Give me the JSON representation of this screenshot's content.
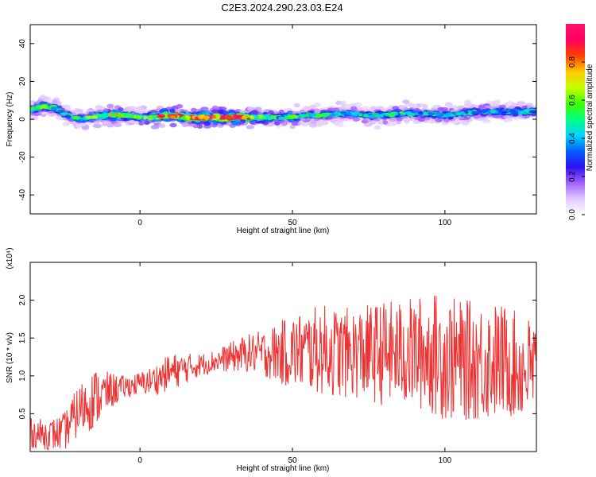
{
  "title": "C2E3.2024.290.23.03.E24",
  "chart_data": [
    {
      "type": "heatmap",
      "xlabel": "Height of straight line (km)",
      "ylabel": "Frequency (Hz)",
      "xlim": [
        -36,
        130
      ],
      "ylim": [
        -50,
        50
      ],
      "xticks": [
        0,
        50,
        100
      ],
      "yticks": [
        -40,
        -20,
        0,
        20,
        40
      ],
      "grid": false,
      "ridge": {
        "description_units": "x in km, y in Hz",
        "x": [
          -36,
          -32,
          -28,
          -24,
          -20,
          -16,
          -12,
          -8,
          -4,
          0,
          5,
          10,
          15,
          20,
          25,
          30,
          35,
          40,
          45,
          50,
          55,
          60,
          65,
          70,
          75,
          80,
          85,
          90,
          95,
          100,
          105,
          110,
          115,
          120,
          125,
          130
        ],
        "y": [
          5,
          7,
          6,
          2,
          0,
          1,
          2,
          2,
          2,
          1,
          1,
          2,
          1,
          1,
          1,
          1,
          1,
          1,
          1,
          1,
          2,
          2,
          3,
          3,
          2,
          2,
          3,
          3,
          3,
          2,
          3,
          4,
          4,
          4,
          4,
          4
        ],
        "amplitude": [
          0.5,
          0.55,
          0.5,
          0.45,
          0.5,
          0.55,
          0.65,
          0.8,
          0.6,
          0.55,
          0.7,
          0.9,
          0.85,
          0.95,
          0.95,
          0.9,
          0.8,
          0.6,
          0.5,
          0.55,
          0.5,
          0.5,
          0.45,
          0.45,
          0.45,
          0.45,
          0.5,
          0.45,
          0.45,
          0.45,
          0.45,
          0.45,
          0.45,
          0.45,
          0.45,
          0.45
        ]
      },
      "colorbar": {
        "label": "Normalized spectral amplitude",
        "range": [
          0,
          1
        ],
        "ticks": [
          0.0,
          0.2,
          0.4,
          0.6,
          0.8
        ],
        "tick_labels": [
          "0.0",
          "0.2",
          "0.4",
          "0.6",
          "0.8"
        ],
        "colors": [
          "#ffffff",
          "#e0c8ff",
          "#a060ff",
          "#3010f0",
          "#0060ff",
          "#00d8ff",
          "#00ff80",
          "#40ff00",
          "#c8ff00",
          "#ffc800",
          "#ff4000",
          "#ff0060",
          "#ff1070"
        ]
      }
    },
    {
      "type": "line",
      "xlabel": "Height of straight line (km)",
      "ylabel": "SNR (10 * v/v)",
      "y_multiplier": "(x10⁴)",
      "xlim": [
        -36,
        130
      ],
      "ylim": [
        0,
        2.5
      ],
      "xticks": [
        0,
        50,
        100
      ],
      "yticks": [
        0.5,
        1.0,
        1.5,
        2.0
      ],
      "ytick_labels": [
        "0.5",
        "1.0",
        "1.5",
        "2.0"
      ],
      "grid": false,
      "series": [
        {
          "color": "#ee3333",
          "envelope": {
            "x": [
              -36,
              -30,
              -25,
              -20,
              -15,
              -10,
              -5,
              0,
              5,
              10,
              15,
              20,
              25,
              30,
              35,
              40,
              45,
              50,
              55,
              60,
              65,
              70,
              75,
              80,
              85,
              90,
              95,
              100,
              105,
              110,
              115,
              120,
              125,
              130
            ],
            "mean": [
              0.25,
              0.22,
              0.25,
              0.55,
              0.7,
              0.8,
              0.85,
              0.9,
              0.95,
              1.05,
              1.1,
              1.15,
              1.2,
              1.25,
              1.3,
              1.3,
              1.3,
              1.32,
              1.33,
              1.35,
              1.3,
              1.3,
              1.3,
              1.3,
              1.3,
              1.3,
              1.3,
              1.25,
              1.2,
              1.2,
              1.2,
              1.2,
              1.1,
              1.1
            ],
            "spread": [
              0.2,
              0.2,
              0.25,
              0.35,
              0.4,
              0.25,
              0.15,
              0.15,
              0.2,
              0.25,
              0.2,
              0.15,
              0.15,
              0.2,
              0.25,
              0.3,
              0.4,
              0.5,
              0.55,
              0.6,
              0.6,
              0.6,
              0.65,
              0.7,
              0.7,
              0.75,
              0.8,
              0.85,
              0.8,
              0.8,
              0.8,
              0.75,
              0.7,
              0.7
            ]
          }
        }
      ]
    }
  ]
}
